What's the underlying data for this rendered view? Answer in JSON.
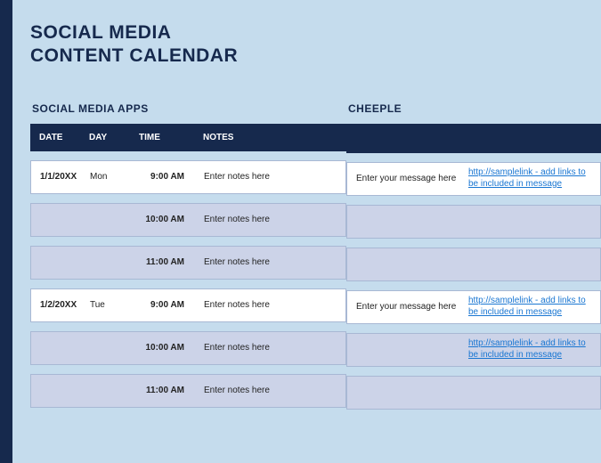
{
  "title_line1": "SOCIAL MEDIA",
  "title_line2": "CONTENT CALENDAR",
  "sections": {
    "left_heading": "SOCIAL MEDIA APPS",
    "right_heading": "CHEEPLE"
  },
  "columns": {
    "date": "DATE",
    "day": "DAY",
    "time": "TIME",
    "notes": "NOTES"
  },
  "rows": [
    {
      "date": "1/1/20XX",
      "day": "Mon",
      "time": "9:00 AM",
      "notes": "Enter notes here",
      "bg": "white",
      "message": "Enter your message here",
      "link": "http://samplelink - add links to be included in message"
    },
    {
      "date": "",
      "day": "",
      "time": "10:00 AM",
      "notes": "Enter notes here",
      "bg": "tint",
      "message": "",
      "link": ""
    },
    {
      "date": "",
      "day": "",
      "time": "11:00 AM",
      "notes": "Enter notes here",
      "bg": "tint",
      "message": "",
      "link": ""
    },
    {
      "date": "1/2/20XX",
      "day": "Tue",
      "time": "9:00 AM",
      "notes": "Enter notes here",
      "bg": "white",
      "message": "Enter your message here",
      "link": "http://samplelink - add links to be included in message"
    },
    {
      "date": "",
      "day": "",
      "time": "10:00 AM",
      "notes": "Enter notes here",
      "bg": "tint",
      "message": "",
      "link": "http://samplelink - add links to be included in message"
    },
    {
      "date": "",
      "day": "",
      "time": "11:00 AM",
      "notes": "Enter notes here",
      "bg": "tint",
      "message": "",
      "link": ""
    }
  ],
  "colors": {
    "page_bg": "#c5dced",
    "dark_navy": "#16294d",
    "row_tint": "#ccd3e8",
    "row_border": "#a8b8d4",
    "link": "#1976d2"
  }
}
